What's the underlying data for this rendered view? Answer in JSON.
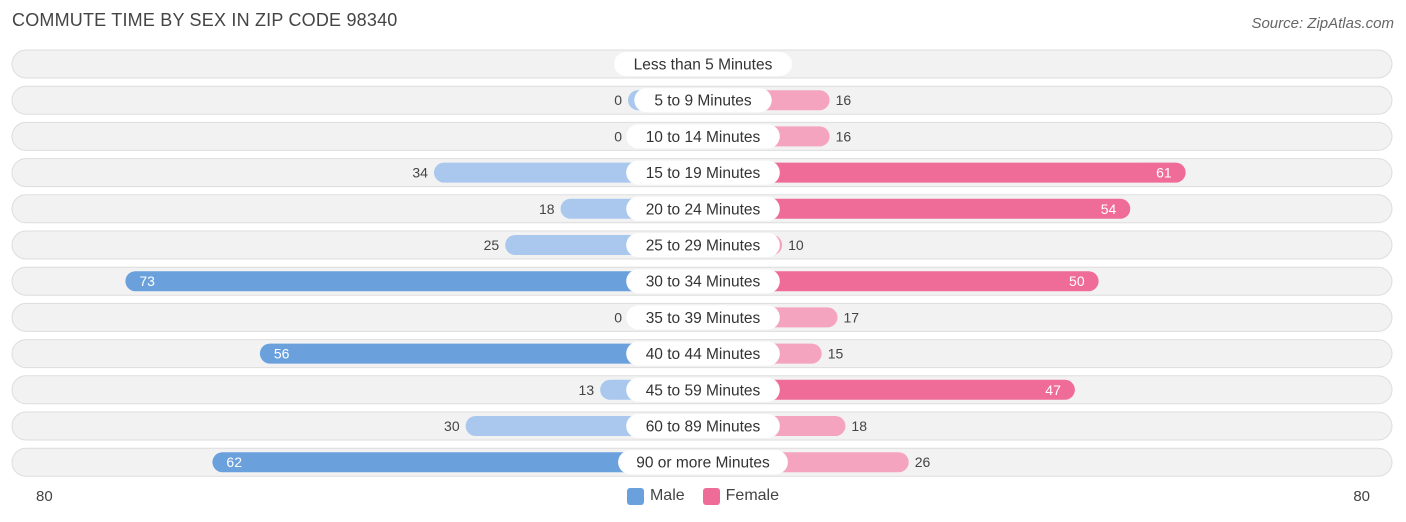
{
  "header": {
    "title": "COMMUTE TIME BY SEX IN ZIP CODE 98340",
    "source": "Source: ZipAtlas.com"
  },
  "colors": {
    "male_strong": "#6aa0dc",
    "male_light": "#aac8ee",
    "female_strong": "#f06c98",
    "female_light": "#f5a4bf",
    "row_bg": "#f2f2f2",
    "row_border": "#dddddd"
  },
  "chart_data": {
    "type": "bar",
    "orientation": "horizontal-diverging",
    "title": "COMMUTE TIME BY SEX IN ZIP CODE 98340",
    "categories": [
      "Less than 5 Minutes",
      "5 to 9 Minutes",
      "10 to 14 Minutes",
      "15 to 19 Minutes",
      "20 to 24 Minutes",
      "25 to 29 Minutes",
      "30 to 34 Minutes",
      "35 to 39 Minutes",
      "40 to 44 Minutes",
      "45 to 59 Minutes",
      "60 to 89 Minutes",
      "90 or more Minutes"
    ],
    "series": [
      {
        "name": "Male",
        "values": [
          0,
          0,
          0,
          34,
          18,
          25,
          73,
          0,
          56,
          13,
          30,
          62
        ]
      },
      {
        "name": "Female",
        "values": [
          0,
          16,
          16,
          61,
          54,
          10,
          50,
          17,
          15,
          47,
          18,
          26
        ]
      }
    ],
    "axis": {
      "min_label": "80",
      "max_label": "80",
      "max": 80
    },
    "legend_placement": "bottom-center"
  },
  "legend": {
    "male": "Male",
    "female": "Female"
  }
}
